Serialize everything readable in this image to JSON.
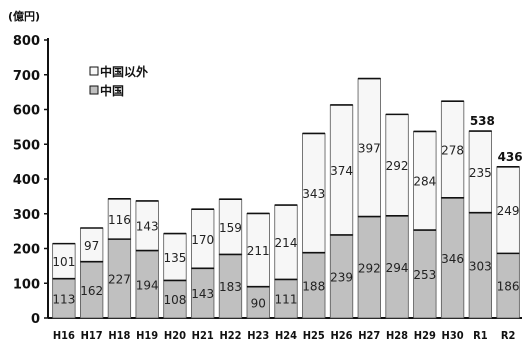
{
  "chart_data": {
    "type": "bar",
    "stacked": true,
    "unit_label": "(億円)",
    "categories": [
      "H16",
      "H17",
      "H18",
      "H19",
      "H20",
      "H21",
      "H22",
      "H23",
      "H24",
      "H25",
      "H26",
      "H27",
      "H28",
      "H29",
      "H30",
      "R1",
      "R2"
    ],
    "series": [
      {
        "name": "中国",
        "color": "#c0c0c0",
        "values": [
          113,
          162,
          227,
          194,
          108,
          143,
          183,
          90,
          111,
          188,
          239,
          292,
          294,
          253,
          346,
          303,
          186
        ]
      },
      {
        "name": "中国以外",
        "color": "#f7f7f7",
        "values": [
          101,
          97,
          116,
          143,
          135,
          170,
          159,
          211,
          214,
          343,
          374,
          397,
          292,
          284,
          278,
          235,
          249
        ]
      }
    ],
    "totals": [
      {
        "index": 15,
        "label": "538"
      },
      {
        "index": 16,
        "label": "436"
      }
    ],
    "ylim": [
      0,
      800
    ],
    "yticks": [
      0,
      100,
      200,
      300,
      400,
      500,
      600,
      700,
      800
    ],
    "grid": false,
    "legend_position": "top-left",
    "legend": [
      {
        "label": "中国以外",
        "series": 1
      },
      {
        "label": "中国",
        "series": 0
      }
    ]
  }
}
